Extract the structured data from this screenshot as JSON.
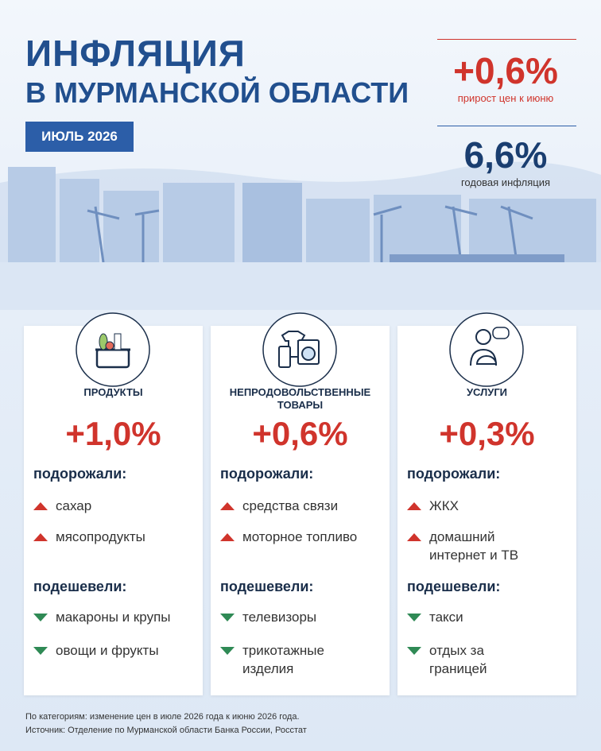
{
  "header": {
    "title_line1": "ИНФЛЯЦИЯ",
    "title_line2": "В МУРМАНСКОЙ ОБЛАСТИ",
    "period": "ИЮЛЬ 2026"
  },
  "stats": [
    {
      "value": "+0,6%",
      "caption": "прирост цен к июню"
    },
    {
      "value": "6,6%",
      "caption": "годовая инфляция"
    }
  ],
  "cards": [
    {
      "title": "ПРОДУКТЫ",
      "change": "+1,0%",
      "up_label": "подорожали:",
      "up": [
        "сахар",
        "мясопродукты"
      ],
      "down_label": "подешевели:",
      "down": [
        "макароны и крупы",
        "овощи и фрукты"
      ]
    },
    {
      "title": "НЕПРОДОВОЛЬСТВЕННЫЕ ТОВАРЫ",
      "change": "+0,6%",
      "up_label": "подорожали:",
      "up": [
        "средства связи",
        "моторное топливо"
      ],
      "down_label": "подешевели:",
      "down": [
        "телевизоры",
        "трикотажные\nизделия"
      ]
    },
    {
      "title": "УСЛУГИ",
      "change": "+0,3%",
      "up_label": "подорожали:",
      "up": [
        "ЖКХ",
        "домашний\nинтернет и ТВ"
      ],
      "down_label": "подешевели:",
      "down": [
        "такси",
        "отдых за\nграницей"
      ]
    }
  ],
  "footer": {
    "note": "По категориям: изменение цен в июле 2026 года к июню 2026 года.",
    "source": "Источник: Отделение по Мурманской области Банка России, Росстат"
  }
}
